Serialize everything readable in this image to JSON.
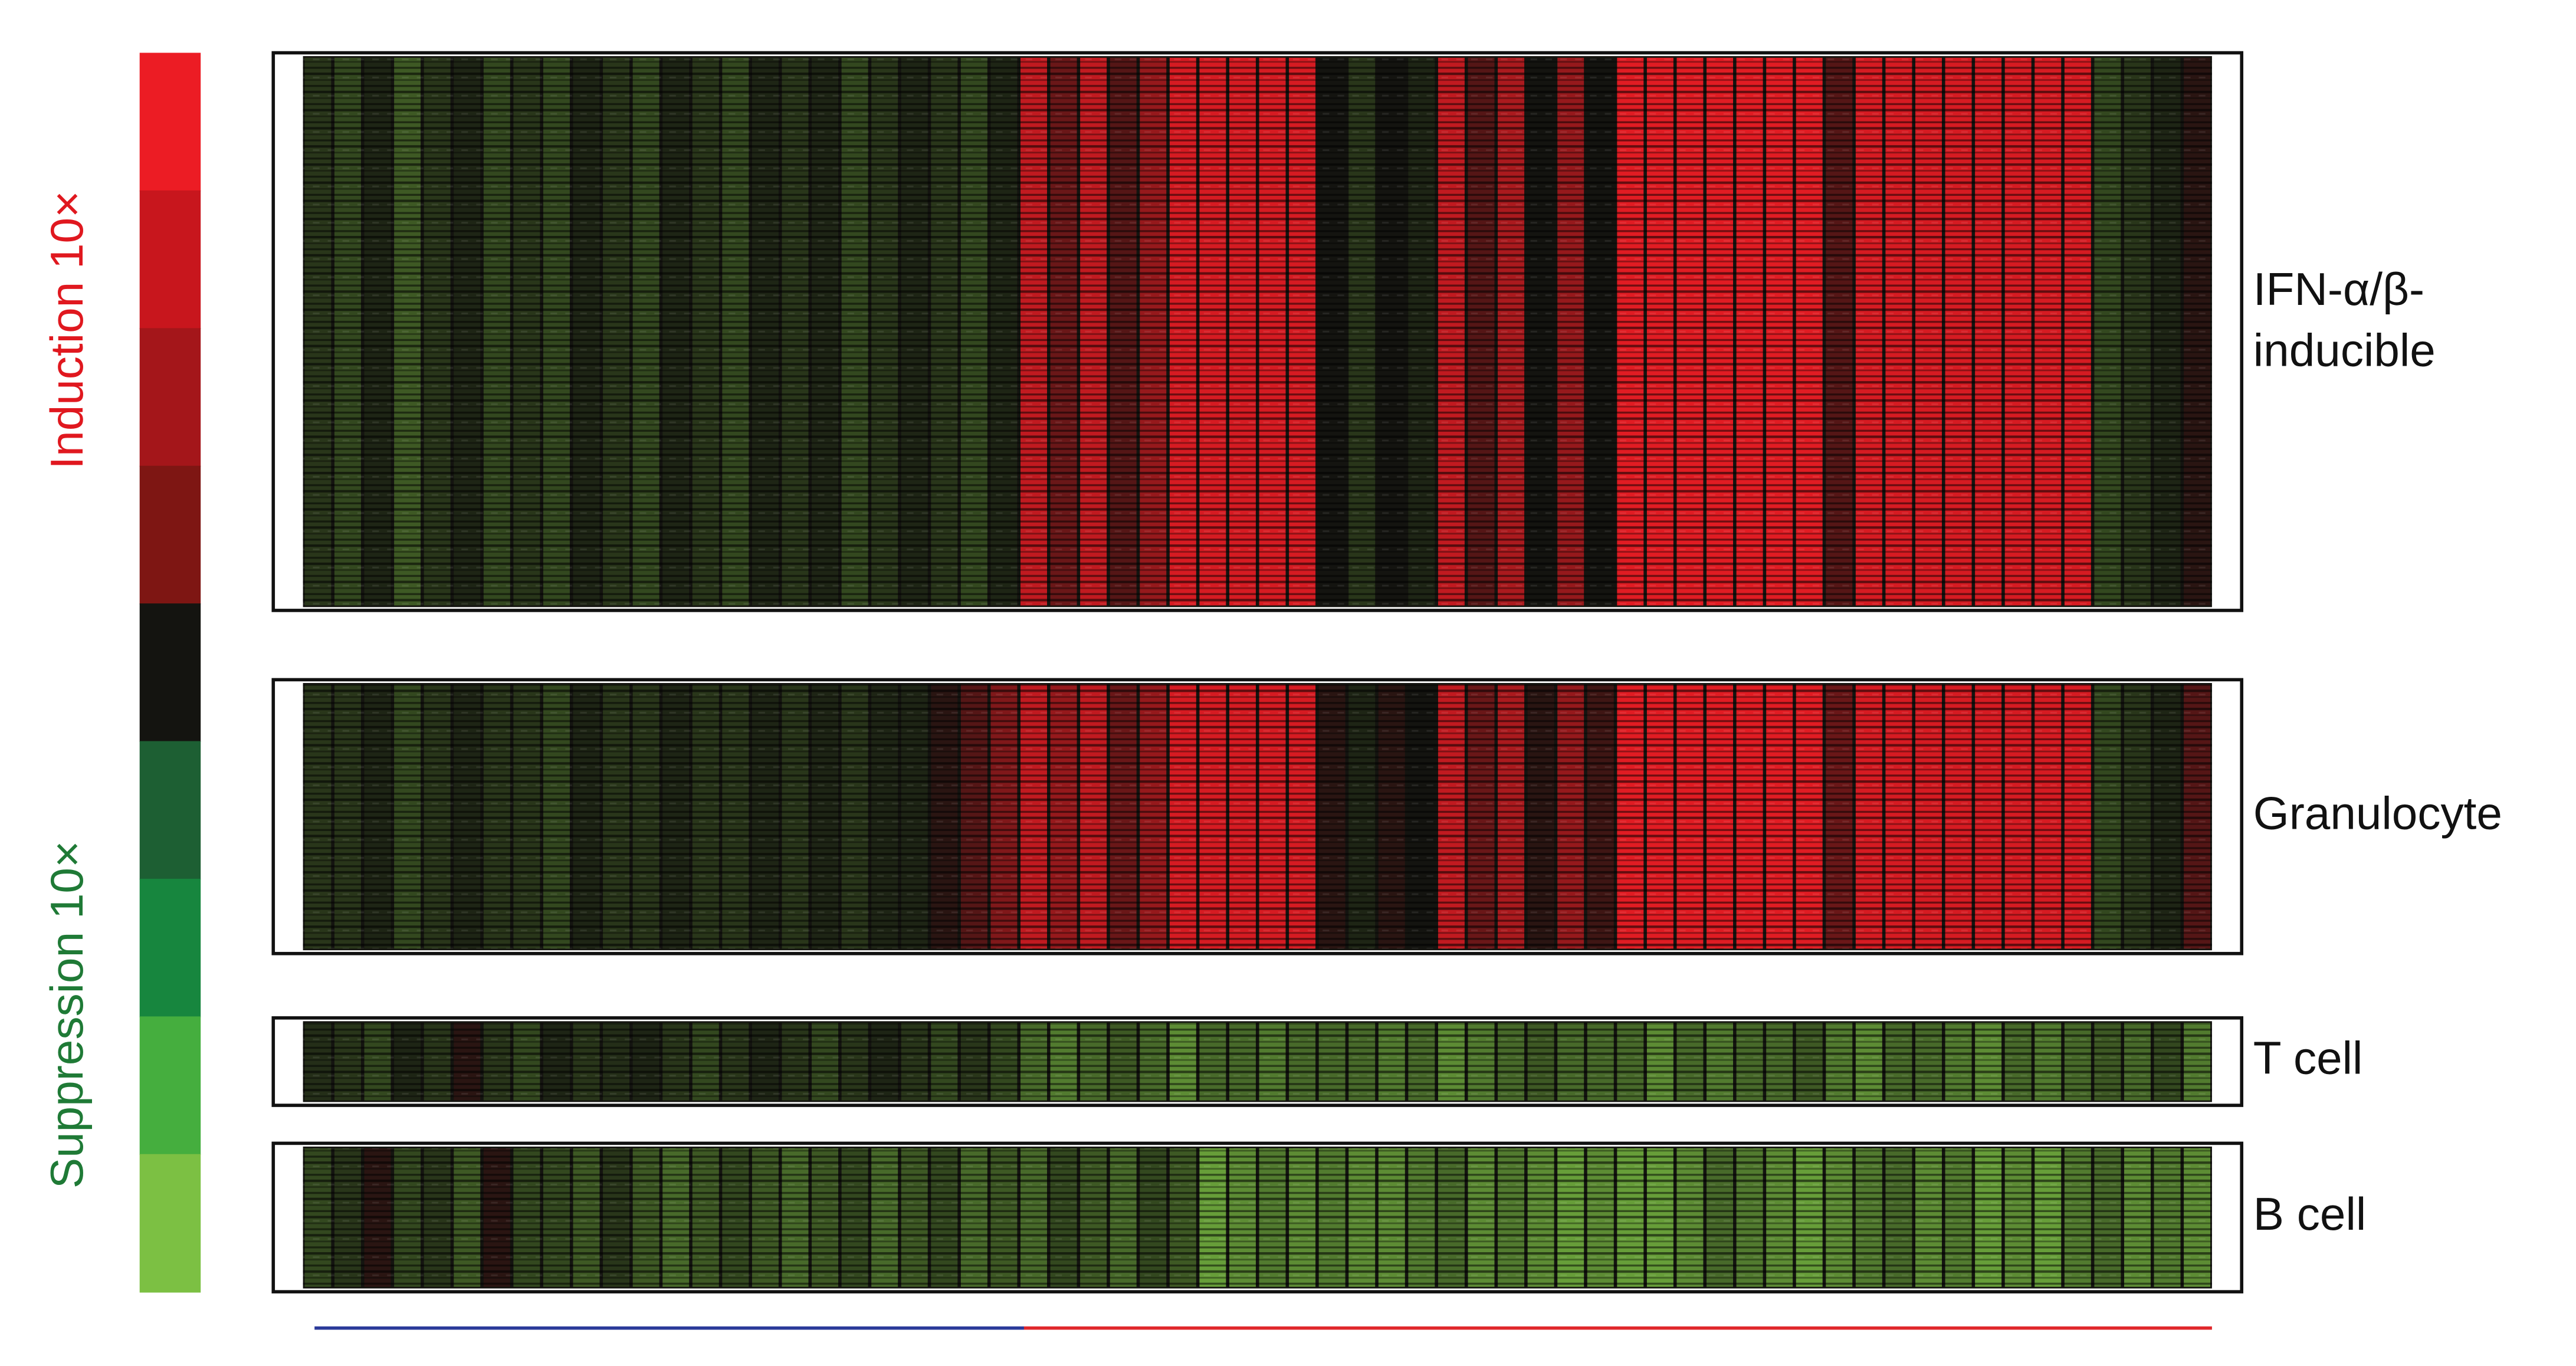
{
  "chart_data": {
    "type": "heatmap",
    "clim": [
      -1,
      1
    ],
    "colorbar": {
      "colors": [
        "#ec1c24",
        "#c8161d",
        "#a4161a",
        "#7e1613",
        "#141410",
        "#1d5f33",
        "#17863e",
        "#45ae3e",
        "#7cc043"
      ],
      "top_label": "Induction 10×",
      "top_color": "#e0181f",
      "bottom_label": "Suppression 10×",
      "bottom_color": "#1f7a36"
    },
    "panels": [
      {
        "label": [
          "IFN-α/β-",
          "inducible"
        ],
        "values": [
          -0.2,
          -0.3,
          -0.1,
          -0.4,
          -0.2,
          -0.1,
          -0.3,
          -0.2,
          -0.3,
          -0.1,
          -0.2,
          -0.3,
          -0.1,
          -0.2,
          -0.3,
          -0.1,
          -0.2,
          -0.1,
          -0.3,
          -0.2,
          -0.1,
          -0.2,
          -0.3,
          -0.1,
          0.8,
          0.4,
          0.8,
          0.3,
          0.6,
          0.9,
          0.9,
          0.9,
          0.9,
          0.9,
          0,
          -0.2,
          0,
          -0.1,
          0.8,
          0.3,
          0.7,
          0,
          0.6,
          0,
          0.95,
          0.95,
          0.95,
          0.95,
          0.95,
          0.95,
          0.95,
          0.3,
          0.9,
          0.9,
          0.9,
          0.9,
          0.9,
          0.9,
          0.9,
          0.9,
          -0.3,
          -0.2,
          -0.1,
          0.1
        ]
      },
      {
        "label": [
          "Granulocyte"
        ],
        "values": [
          -0.2,
          -0.2,
          -0.1,
          -0.3,
          -0.2,
          -0.1,
          -0.2,
          -0.2,
          -0.3,
          -0.1,
          -0.2,
          -0.2,
          -0.1,
          -0.2,
          -0.2,
          -0.1,
          -0.2,
          -0.1,
          -0.2,
          -0.1,
          -0.1,
          0.1,
          0.3,
          0.5,
          0.8,
          0.6,
          0.8,
          0.4,
          0.6,
          0.9,
          0.9,
          0.9,
          0.9,
          0.9,
          0.1,
          -0.1,
          0.1,
          0,
          0.8,
          0.4,
          0.7,
          0.1,
          0.6,
          0.2,
          0.95,
          0.95,
          0.95,
          0.95,
          0.95,
          0.95,
          0.95,
          0.4,
          0.9,
          0.9,
          0.9,
          0.9,
          0.9,
          0.9,
          0.9,
          0.9,
          -0.3,
          -0.2,
          -0.1,
          0.3
        ]
      },
      {
        "label": [
          "T cell"
        ],
        "values": [
          -0.15,
          -0.2,
          -0.3,
          -0.1,
          -0.2,
          0.1,
          -0.2,
          -0.3,
          -0.1,
          -0.2,
          -0.15,
          -0.1,
          -0.2,
          -0.3,
          -0.2,
          -0.1,
          -0.2,
          -0.3,
          -0.2,
          -0.1,
          -0.2,
          -0.3,
          -0.2,
          -0.3,
          -0.5,
          -0.6,
          -0.5,
          -0.4,
          -0.5,
          -0.7,
          -0.5,
          -0.5,
          -0.6,
          -0.5,
          -0.5,
          -0.5,
          -0.6,
          -0.5,
          -0.7,
          -0.6,
          -0.5,
          -0.4,
          -0.5,
          -0.5,
          -0.5,
          -0.7,
          -0.5,
          -0.6,
          -0.5,
          -0.5,
          -0.4,
          -0.6,
          -0.7,
          -0.5,
          -0.5,
          -0.6,
          -0.7,
          -0.5,
          -0.6,
          -0.5,
          -0.4,
          -0.5,
          -0.3,
          -0.6
        ]
      },
      {
        "label": [
          "B cell"
        ],
        "values": [
          -0.3,
          -0.2,
          0.1,
          -0.3,
          -0.2,
          -0.4,
          0.1,
          -0.3,
          -0.3,
          -0.4,
          -0.2,
          -0.4,
          -0.5,
          -0.4,
          -0.3,
          -0.4,
          -0.5,
          -0.4,
          -0.3,
          -0.5,
          -0.4,
          -0.3,
          -0.5,
          -0.4,
          -0.5,
          -0.3,
          -0.4,
          -0.5,
          -0.3,
          -0.4,
          -0.8,
          -0.7,
          -0.6,
          -0.7,
          -0.6,
          -0.7,
          -0.7,
          -0.6,
          -0.5,
          -0.7,
          -0.6,
          -0.7,
          -0.8,
          -0.7,
          -0.8,
          -0.8,
          -0.7,
          -0.5,
          -0.6,
          -0.7,
          -0.8,
          -0.7,
          -0.6,
          -0.5,
          -0.7,
          -0.6,
          -0.8,
          -0.7,
          -0.8,
          -0.6,
          -0.5,
          -0.7,
          -0.6,
          -0.7
        ]
      }
    ]
  }
}
